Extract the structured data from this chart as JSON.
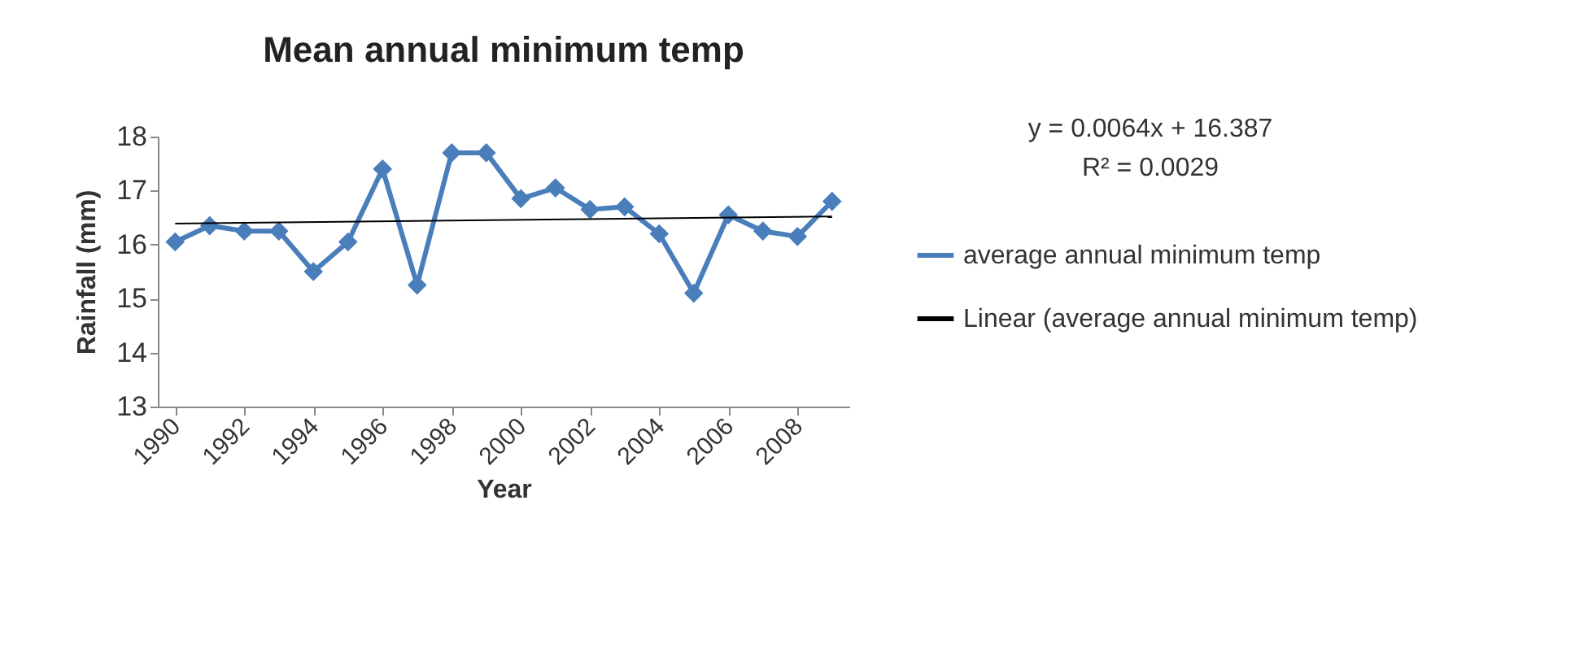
{
  "chart_data": {
    "type": "line",
    "title": "Mean annual minimum temp",
    "xlabel": "Year",
    "ylabel": "Rainfall (mm)",
    "annotations": [
      "y = 0.0064x + 16.387",
      "R² = 0.0029"
    ],
    "xlim": [
      1989.5,
      2009.5
    ],
    "xticks": [
      1990,
      1992,
      1994,
      1996,
      1998,
      2000,
      2002,
      2004,
      2006,
      2008
    ],
    "ylim": [
      13,
      18
    ],
    "yticks": [
      13,
      14,
      15,
      16,
      17,
      18
    ],
    "grid": false,
    "legend": "right",
    "marker": "diamond",
    "series": [
      {
        "name": "average annual minimum temp",
        "color": "#4a7ebb",
        "x": [
          1990,
          1991,
          1992,
          1993,
          1994,
          1995,
          1996,
          1997,
          1998,
          1999,
          2000,
          2001,
          2002,
          2003,
          2004,
          2005,
          2006,
          2007,
          2008,
          2009
        ],
        "values": [
          16.05,
          16.35,
          16.25,
          16.25,
          15.5,
          16.05,
          17.4,
          15.25,
          17.7,
          17.7,
          16.85,
          17.05,
          16.65,
          16.7,
          16.2,
          15.1,
          16.55,
          16.25,
          16.15,
          16.8
        ]
      },
      {
        "name": "Linear (average annual minimum temp)",
        "color": "#000000",
        "type": "line",
        "marker": "none",
        "x": [
          1990,
          2009
        ],
        "values": [
          16.39,
          16.52
        ]
      }
    ]
  }
}
